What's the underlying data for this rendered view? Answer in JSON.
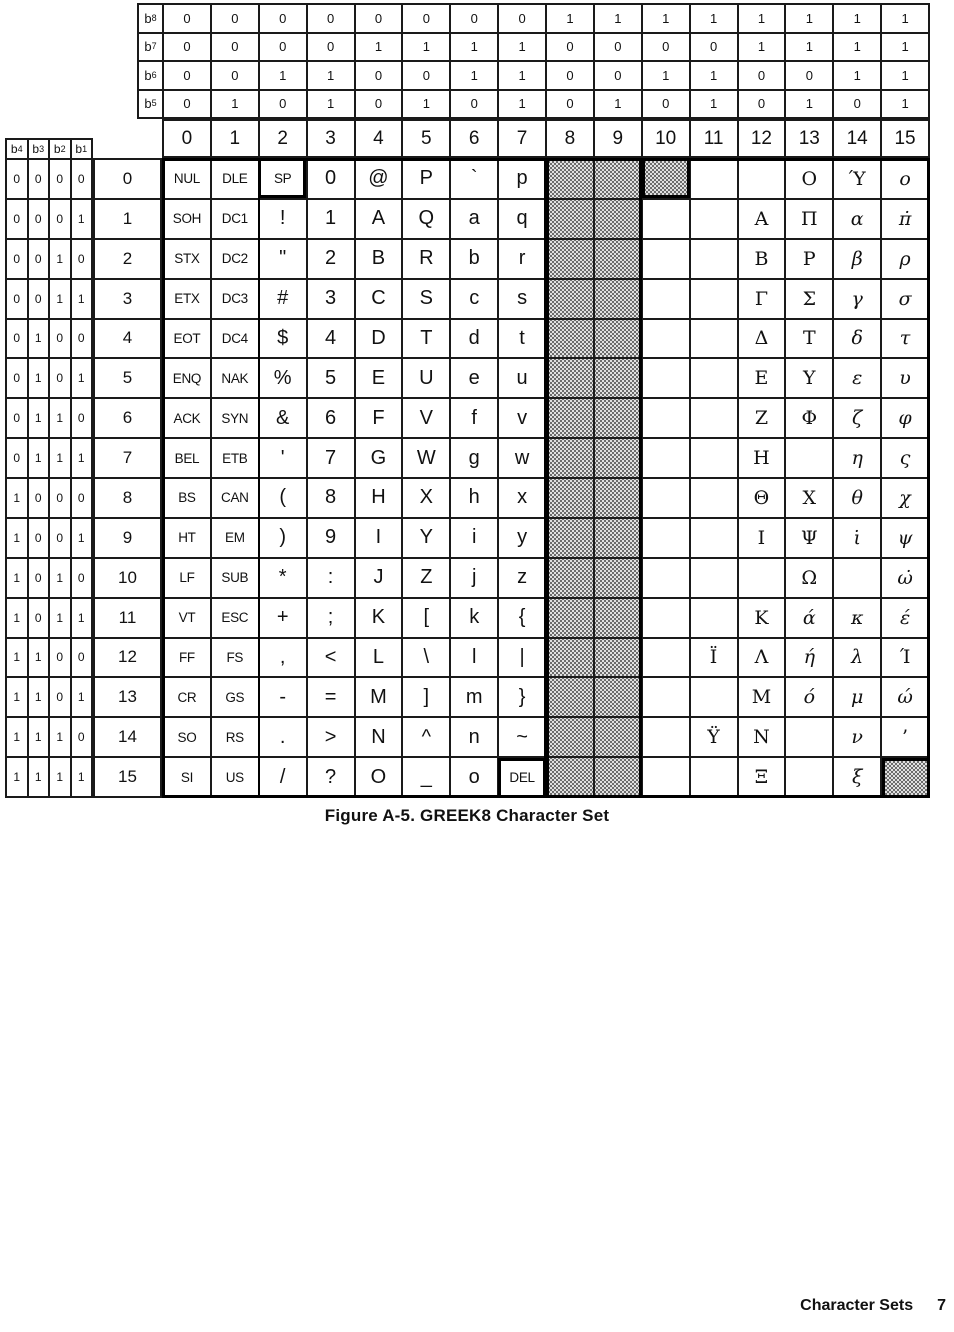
{
  "caption": "Figure A-5. GREEK8 Character Set",
  "footer": {
    "section": "Character Sets",
    "page": "7"
  },
  "bit_header": {
    "labels": [
      {
        "base": "b",
        "sub": "8"
      },
      {
        "base": "b",
        "sub": "7"
      },
      {
        "base": "b",
        "sub": "6"
      },
      {
        "base": "b",
        "sub": "5"
      }
    ],
    "rows": [
      [
        "0",
        "0",
        "0",
        "0",
        "0",
        "0",
        "0",
        "0",
        "1",
        "1",
        "1",
        "1",
        "1",
        "1",
        "1",
        "1"
      ],
      [
        "0",
        "0",
        "0",
        "0",
        "1",
        "1",
        "1",
        "1",
        "0",
        "0",
        "0",
        "0",
        "1",
        "1",
        "1",
        "1"
      ],
      [
        "0",
        "0",
        "1",
        "1",
        "0",
        "0",
        "1",
        "1",
        "0",
        "0",
        "1",
        "1",
        "0",
        "0",
        "1",
        "1"
      ],
      [
        "0",
        "1",
        "0",
        "1",
        "0",
        "1",
        "0",
        "1",
        "0",
        "1",
        "0",
        "1",
        "0",
        "1",
        "0",
        "1"
      ]
    ],
    "column_numbers": [
      "0",
      "1",
      "2",
      "3",
      "4",
      "5",
      "6",
      "7",
      "8",
      "9",
      "10",
      "11",
      "12",
      "13",
      "14",
      "15"
    ]
  },
  "row_header": {
    "labels": [
      {
        "base": "b",
        "sub": "4"
      },
      {
        "base": "b",
        "sub": "3"
      },
      {
        "base": "b",
        "sub": "2"
      },
      {
        "base": "b",
        "sub": "1"
      }
    ],
    "rows": [
      {
        "bits": [
          "0",
          "0",
          "0",
          "0"
        ],
        "number": "0"
      },
      {
        "bits": [
          "0",
          "0",
          "0",
          "1"
        ],
        "number": "1"
      },
      {
        "bits": [
          "0",
          "0",
          "1",
          "0"
        ],
        "number": "2"
      },
      {
        "bits": [
          "0",
          "0",
          "1",
          "1"
        ],
        "number": "3"
      },
      {
        "bits": [
          "0",
          "1",
          "0",
          "0"
        ],
        "number": "4"
      },
      {
        "bits": [
          "0",
          "1",
          "0",
          "1"
        ],
        "number": "5"
      },
      {
        "bits": [
          "0",
          "1",
          "1",
          "0"
        ],
        "number": "6"
      },
      {
        "bits": [
          "0",
          "1",
          "1",
          "1"
        ],
        "number": "7"
      },
      {
        "bits": [
          "1",
          "0",
          "0",
          "0"
        ],
        "number": "8"
      },
      {
        "bits": [
          "1",
          "0",
          "0",
          "1"
        ],
        "number": "9"
      },
      {
        "bits": [
          "1",
          "0",
          "1",
          "0"
        ],
        "number": "10"
      },
      {
        "bits": [
          "1",
          "0",
          "1",
          "1"
        ],
        "number": "11"
      },
      {
        "bits": [
          "1",
          "1",
          "0",
          "0"
        ],
        "number": "12"
      },
      {
        "bits": [
          "1",
          "1",
          "0",
          "1"
        ],
        "number": "13"
      },
      {
        "bits": [
          "1",
          "1",
          "1",
          "0"
        ],
        "number": "14"
      },
      {
        "bits": [
          "1",
          "1",
          "1",
          "1"
        ],
        "number": "15"
      }
    ]
  },
  "grid": {
    "rows": [
      [
        "NUL",
        "DLE",
        "SP",
        "0",
        "@",
        "P",
        "`",
        "p",
        "",
        "",
        "",
        "",
        "",
        "Ο",
        "Ύ",
        "ο"
      ],
      [
        "SOH",
        "DC1",
        "!",
        "1",
        "A",
        "Q",
        "a",
        "q",
        "",
        "",
        "",
        "",
        "Α",
        "Π",
        "α",
        "π̇"
      ],
      [
        "STX",
        "DC2",
        "\"",
        "2",
        "B",
        "R",
        "b",
        "r",
        "",
        "",
        "",
        "",
        "Β",
        "Ρ",
        "β",
        "ρ"
      ],
      [
        "ETX",
        "DC3",
        "#",
        "3",
        "C",
        "S",
        "c",
        "s",
        "",
        "",
        "",
        "",
        "Γ",
        "Σ",
        "γ",
        "σ"
      ],
      [
        "EOT",
        "DC4",
        "$",
        "4",
        "D",
        "T",
        "d",
        "t",
        "",
        "",
        "",
        "",
        "Δ",
        "Τ",
        "δ",
        "τ"
      ],
      [
        "ENQ",
        "NAK",
        "%",
        "5",
        "E",
        "U",
        "e",
        "u",
        "",
        "",
        "",
        "",
        "Ε",
        "Υ",
        "ε",
        "υ"
      ],
      [
        "ACK",
        "SYN",
        "&",
        "6",
        "F",
        "V",
        "f",
        "v",
        "",
        "",
        "",
        "",
        "Ζ",
        "Φ",
        "ζ",
        "φ"
      ],
      [
        "BEL",
        "ETB",
        "'",
        "7",
        "G",
        "W",
        "g",
        "w",
        "",
        "",
        "",
        "",
        "Η",
        "",
        "η",
        "ς"
      ],
      [
        "BS",
        "CAN",
        "(",
        "8",
        "H",
        "X",
        "h",
        "x",
        "",
        "",
        "",
        "",
        "Θ",
        "Χ",
        "θ",
        "χ"
      ],
      [
        "HT",
        "EM",
        ")",
        "9",
        "I",
        "Y",
        "i",
        "y",
        "",
        "",
        "",
        "",
        "Ι",
        "Ψ",
        "ι̇",
        "ψ"
      ],
      [
        "LF",
        "SUB",
        "*",
        ":",
        "J",
        "Z",
        "j",
        "z",
        "",
        "",
        "",
        "",
        "",
        "Ω",
        "",
        "ω̇"
      ],
      [
        "VT",
        "ESC",
        "+",
        ";",
        "K",
        "[",
        "k",
        "{",
        "",
        "",
        "",
        "",
        "Κ",
        "ά",
        "κ",
        "έ"
      ],
      [
        "FF",
        "FS",
        ",",
        "<",
        "L",
        "\\",
        "l",
        "|",
        "",
        "",
        "",
        "Ϊ",
        "Λ",
        "ή",
        "λ",
        "Ί"
      ],
      [
        "CR",
        "GS",
        "-",
        "=",
        "M",
        "]",
        "m",
        "}",
        "",
        "",
        "",
        "",
        "Μ",
        "ό",
        "μ",
        "ώ"
      ],
      [
        "SO",
        "RS",
        ".",
        ">",
        "N",
        "^",
        "n",
        "~",
        "",
        "",
        "",
        "Ϋ",
        "Ν",
        "",
        "ν",
        "’"
      ],
      [
        "SI",
        "US",
        "/",
        "?",
        "O",
        "_",
        "o",
        "DEL",
        "",
        "",
        "",
        "",
        "Ξ",
        "",
        "ξ",
        ""
      ]
    ],
    "shaded_columns": [
      8,
      9
    ],
    "shaded_extra_cells": [
      [
        0,
        10
      ],
      [
        15,
        15
      ]
    ]
  }
}
